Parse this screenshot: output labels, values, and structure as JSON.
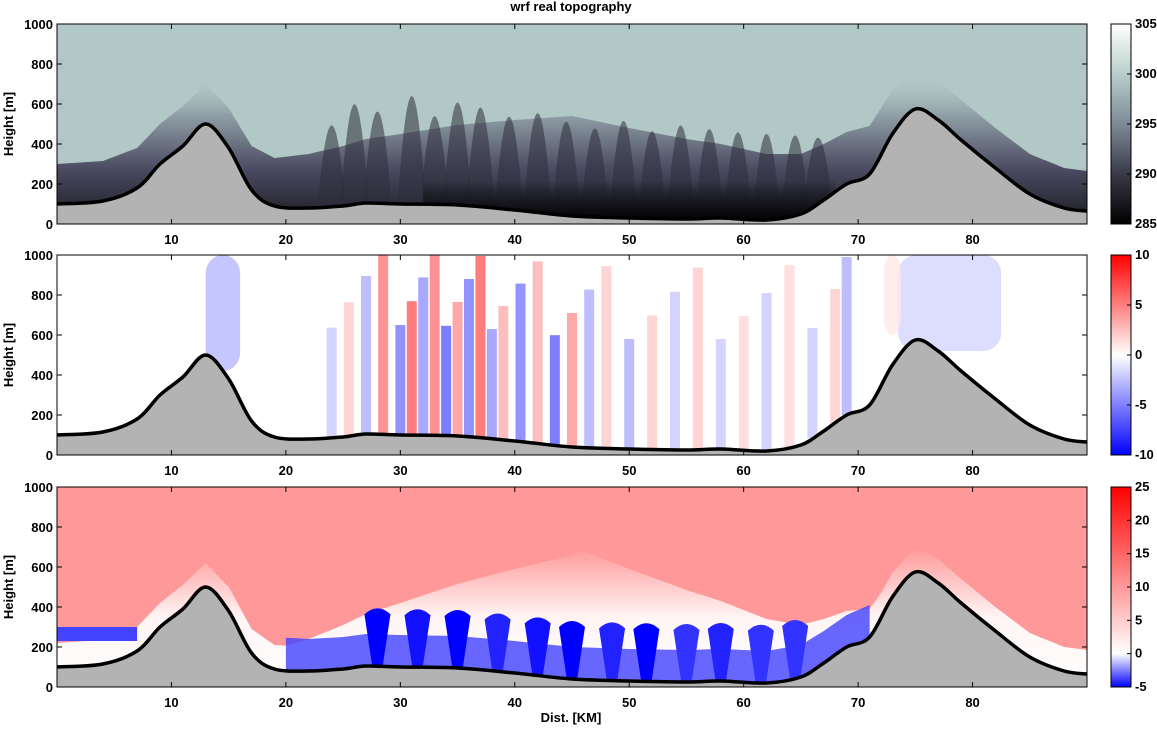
{
  "chart_data": {
    "type": "heatmap",
    "title": "wrf real topography",
    "xlabel": "Dist. [KM]",
    "xlim": [
      0,
      90
    ],
    "xticks": [
      10,
      20,
      30,
      40,
      50,
      60,
      70,
      80
    ],
    "terrain": {
      "x": [
        0,
        4,
        7,
        9,
        11,
        13,
        15,
        17,
        19,
        22,
        25,
        27,
        30,
        35,
        40,
        45,
        50,
        55,
        58,
        62,
        65,
        67,
        69,
        71,
        73,
        75,
        77,
        79,
        82,
        85,
        88,
        90
      ],
      "height": [
        100,
        115,
        180,
        300,
        390,
        500,
        380,
        170,
        90,
        80,
        90,
        105,
        100,
        95,
        70,
        40,
        30,
        25,
        30,
        20,
        50,
        120,
        200,
        250,
        450,
        575,
        520,
        420,
        280,
        150,
        80,
        65
      ]
    },
    "panels": [
      {
        "id": "theta",
        "ylabel": "Height [m]",
        "ylim": [
          0,
          1000
        ],
        "yticks": [
          0,
          200,
          400,
          600,
          800,
          1000
        ],
        "colorbar": {
          "ticks": [
            285,
            290,
            295,
            300,
            305
          ],
          "range": [
            285,
            305
          ],
          "colors": [
            "#000000",
            "#3a3a48",
            "#7d8a95",
            "#b8cfcb",
            "#ffffff"
          ]
        },
        "background_value": 299.5,
        "streaks_x": [
          24,
          26,
          28,
          31,
          33,
          35,
          37,
          39.5,
          42,
          44.5,
          47,
          49.5,
          52,
          54.5,
          57,
          59.5,
          62,
          64.5,
          66.5
        ],
        "streaks_top": [
          700,
          900,
          820,
          980,
          780,
          920,
          880,
          800,
          850,
          780,
          720,
          800,
          700,
          760,
          720,
          690,
          680,
          640,
          560
        ]
      },
      {
        "id": "w",
        "ylabel": "Height [m]",
        "ylim": [
          0,
          1000
        ],
        "yticks": [
          0,
          200,
          400,
          600,
          800,
          1000
        ],
        "colorbar": {
          "ticks": [
            -10,
            -5,
            0,
            5,
            10
          ],
          "range": [
            -10,
            10
          ],
          "colors": [
            "#0000ff",
            "#ffffff",
            "#ff0000"
          ]
        },
        "stripes_x": [
          24,
          25.5,
          27,
          28.5,
          30,
          31,
          32,
          33,
          34,
          35,
          36,
          37,
          38,
          39,
          40.5,
          42,
          43.5,
          45,
          46.5,
          48,
          50,
          52,
          54,
          56,
          58,
          60,
          62,
          64,
          66,
          68,
          69
        ],
        "stripes_val": [
          -2,
          2,
          -3,
          5,
          -5,
          6,
          -4,
          5,
          -6,
          4,
          -5,
          6,
          -4,
          3,
          -5,
          3,
          -6,
          4,
          -3,
          2,
          -3,
          2,
          -2,
          2,
          -2,
          1.5,
          -2,
          1.5,
          -2,
          2,
          -3
        ],
        "blobs": [
          {
            "x": 14.5,
            "top": 1000,
            "bottom": 420,
            "width": 3,
            "val": -3
          },
          {
            "x": 78,
            "top": 1000,
            "bottom": 520,
            "width": 9,
            "val": -1.8
          },
          {
            "x": 73,
            "top": 1000,
            "bottom": 600,
            "width": 1.5,
            "val": 1
          }
        ]
      },
      {
        "id": "u",
        "ylabel": "Height [m]",
        "ylim": [
          0,
          1000
        ],
        "yticks": [
          0,
          200,
          400,
          600,
          800,
          1000
        ],
        "colorbar": {
          "ticks": [
            -5,
            0,
            5,
            10,
            15,
            20,
            25
          ],
          "range": [
            -5,
            25
          ],
          "colors": [
            "#0000ff",
            "#ffffff",
            "#ff0000"
          ]
        },
        "upper_value": 16,
        "lobes_x": [
          28,
          31.5,
          35,
          38.5,
          42,
          45,
          48.5,
          51.5,
          55,
          58,
          61.5,
          64.5
        ],
        "lobes_min": [
          -5,
          -4,
          -5,
          -3,
          -4,
          -5,
          -3,
          -5,
          -2,
          -3,
          -2,
          -2
        ],
        "left_low_band": {
          "x": [
            0,
            7
          ],
          "height": [
            230,
            300
          ],
          "val": -1
        }
      }
    ]
  }
}
